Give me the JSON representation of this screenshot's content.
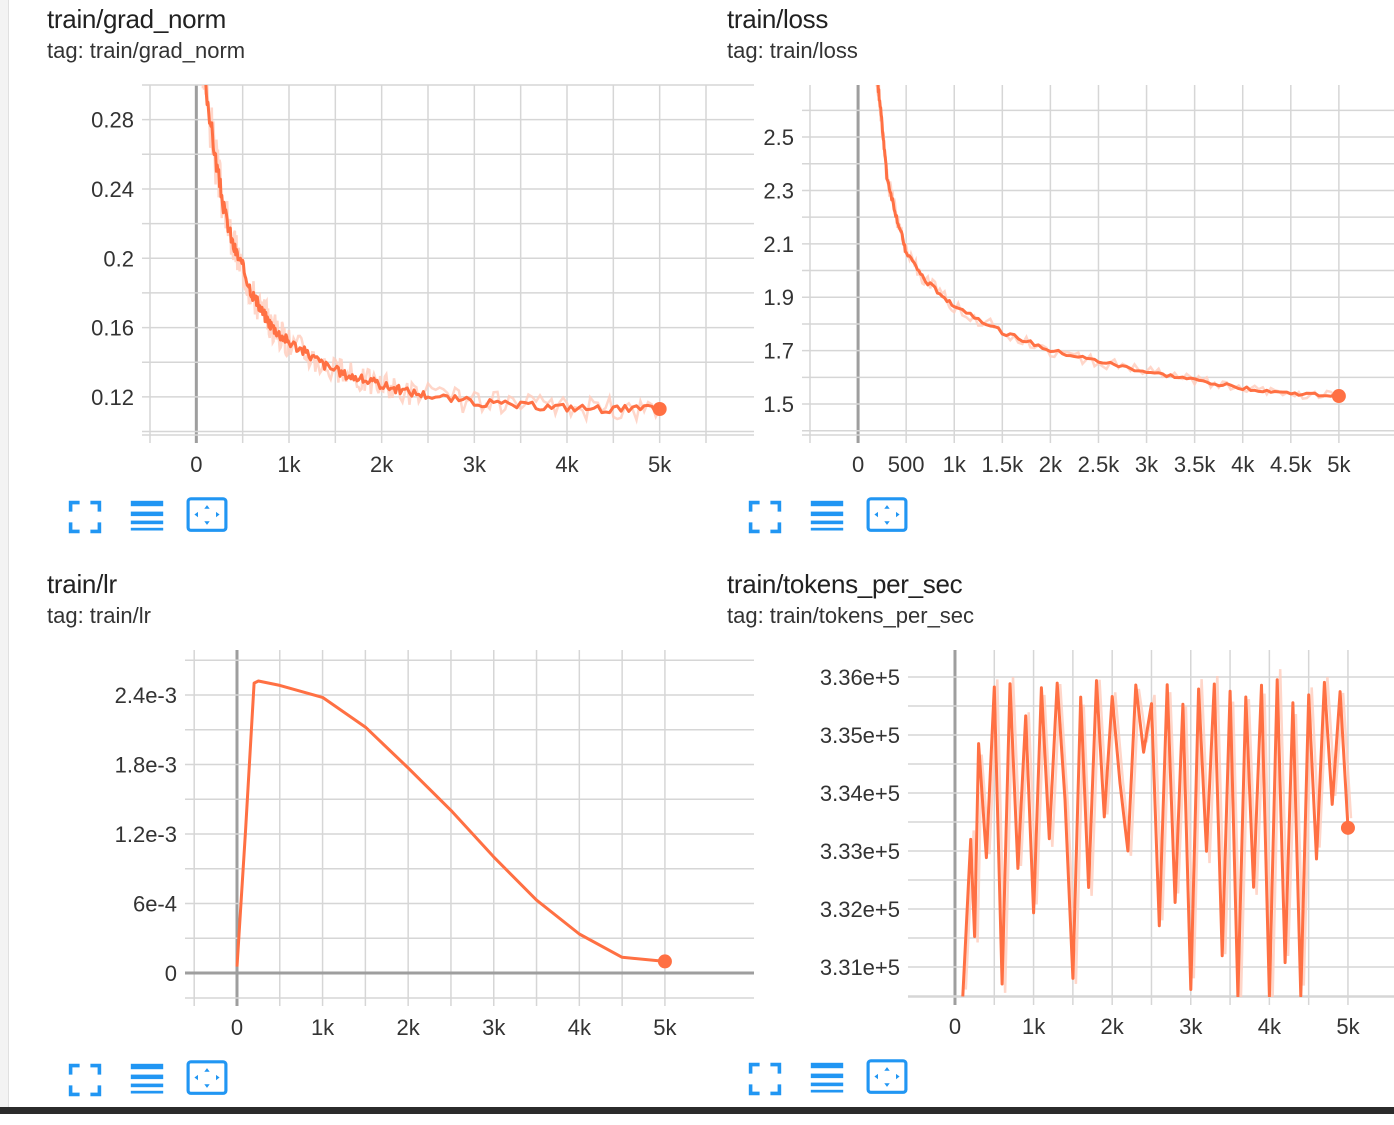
{
  "accent_color": "#2196f3",
  "series_color": "#ff7043",
  "series_raw_color": "#ffccbc",
  "icons": [
    "fullscreen-icon",
    "toggle-log-scale-icon",
    "fit-domain-icon"
  ],
  "chart_data": [
    {
      "type": "line",
      "title": "train/grad_norm",
      "tag": "tag: train/grad_norm",
      "xlim": [
        -500,
        5500
      ],
      "ylim": [
        0.098,
        0.3
      ],
      "grid": true,
      "x_ticks": [
        0,
        1000,
        2000,
        3000,
        4000,
        5000
      ],
      "x_tick_labels": [
        "0",
        "1k",
        "2k",
        "3k",
        "4k",
        "5k"
      ],
      "y_ticks": [
        0.12,
        0.16,
        0.2,
        0.24,
        0.28
      ],
      "y_tick_labels": [
        "0.12",
        "0.16",
        "0.2",
        "0.24",
        "0.28"
      ],
      "x": [
        30,
        100,
        200,
        300,
        400,
        500,
        600,
        700,
        800,
        900,
        1000,
        1200,
        1400,
        1600,
        1800,
        2000,
        2200,
        2500,
        3000,
        3500,
        4000,
        4500,
        5000
      ],
      "y": [
        0.34,
        0.3,
        0.26,
        0.228,
        0.207,
        0.195,
        0.18,
        0.17,
        0.162,
        0.156,
        0.152,
        0.145,
        0.138,
        0.133,
        0.13,
        0.127,
        0.124,
        0.121,
        0.117,
        0.115,
        0.114,
        0.113,
        0.113
      ]
    },
    {
      "type": "line",
      "title": "train/loss",
      "tag": "tag: train/loss",
      "xlim": [
        -500,
        5490
      ],
      "ylim": [
        1.384,
        2.695
      ],
      "grid": true,
      "x_ticks": [
        0,
        500,
        1000,
        1500,
        2000,
        2500,
        3000,
        3500,
        4000,
        4500,
        5000
      ],
      "x_tick_labels": [
        "0",
        "500",
        "1k",
        "1.5k",
        "2k",
        "2.5k",
        "3k",
        "3.5k",
        "4k",
        "4.5k",
        "5k"
      ],
      "y_ticks": [
        1.5,
        1.7,
        1.9,
        2.1,
        2.3,
        2.5
      ],
      "y_tick_labels": [
        "1.5",
        "1.7",
        "1.9",
        "2.1",
        "2.3",
        "2.5"
      ],
      "x": [
        190,
        250,
        300,
        400,
        500,
        700,
        1000,
        1500,
        2000,
        2500,
        3000,
        3500,
        4000,
        4500,
        5000
      ],
      "y": [
        2.75,
        2.55,
        2.35,
        2.2,
        2.07,
        1.96,
        1.87,
        1.77,
        1.7,
        1.66,
        1.62,
        1.59,
        1.56,
        1.54,
        1.53
      ]
    },
    {
      "type": "line",
      "title": "train/lr",
      "tag": "tag: train/lr",
      "xlim": [
        -514,
        5480
      ],
      "ylim": [
        -0.000216,
        0.002788
      ],
      "grid": true,
      "x_ticks": [
        0,
        1000,
        2000,
        3000,
        4000,
        5000
      ],
      "x_tick_labels": [
        "0",
        "1k",
        "2k",
        "3k",
        "4k",
        "5k"
      ],
      "y_ticks": [
        0,
        0.0006,
        0.0012,
        0.0018,
        0.0024
      ],
      "y_tick_labels": [
        "0",
        "6e-4",
        "1.2e-3",
        "1.8e-3",
        "2.4e-3"
      ],
      "x": [
        0,
        100,
        200,
        250,
        500,
        1000,
        1500,
        2000,
        2500,
        3000,
        3500,
        4000,
        4500,
        5000
      ],
      "y": [
        5e-05,
        0.0012,
        0.00248,
        0.00249,
        0.00247,
        0.00236,
        0.0021,
        0.00177,
        0.00138,
        0.00099,
        0.00062,
        0.00033,
        0.00015,
        0.0001
      ]
    },
    {
      "type": "line",
      "title": "train/tokens_per_sec",
      "tag": "tag: train/tokens_per_sec",
      "xlim": [
        -496,
        5484
      ],
      "ylim": [
        330483,
        336466
      ],
      "grid": true,
      "x_ticks": [
        0,
        1000,
        2000,
        3000,
        4000,
        5000
      ],
      "x_tick_labels": [
        "0",
        "1k",
        "2k",
        "3k",
        "4k",
        "5k"
      ],
      "y_ticks": [
        331000,
        332000,
        333000,
        334000,
        335000,
        336000
      ],
      "y_tick_labels": [
        "3.31e+5",
        "3.32e+5",
        "3.33e+5",
        "3.34e+5",
        "3.35e+5",
        "3.36e+5"
      ],
      "x": [
        100,
        200,
        250,
        300,
        400,
        500,
        600,
        700,
        800,
        900,
        1000,
        1100,
        1200,
        1300,
        1400,
        1500,
        1600,
        1700,
        1800,
        1900,
        2000,
        2100,
        2200,
        2300,
        2400,
        2500,
        2600,
        2700,
        2800,
        2900,
        3000,
        3100,
        3200,
        3300,
        3400,
        3500,
        3600,
        3700,
        3800,
        3900,
        4000,
        4100,
        4200,
        4300,
        4400,
        4500,
        4600,
        4700,
        4800,
        4900,
        5000
      ],
      "y": [
        330500,
        333200,
        331500,
        334800,
        332900,
        335800,
        330700,
        335900,
        332700,
        335300,
        331900,
        335800,
        333200,
        335900,
        333900,
        330800,
        335700,
        332400,
        336000,
        333600,
        335700,
        334200,
        333000,
        335800,
        334700,
        335500,
        331700,
        335900,
        332100,
        335500,
        330600,
        335800,
        333000,
        335900,
        331200,
        335800,
        330500,
        335600,
        332400,
        335900,
        330500,
        335900,
        331100,
        335500,
        330500,
        335700,
        332900,
        335900,
        333800,
        335800,
        333400
      ]
    }
  ]
}
